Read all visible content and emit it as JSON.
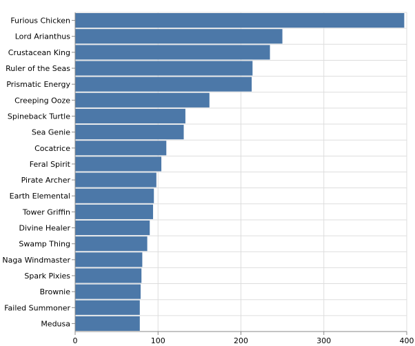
{
  "colors": {
    "bar": "#4c78a8",
    "grid": "#dddddd",
    "axis": "#888888"
  },
  "chart_data": {
    "type": "bar",
    "orientation": "horizontal",
    "title": "",
    "xlabel": "",
    "ylabel": "",
    "grid": true,
    "xlim": [
      0,
      400
    ],
    "xticks": [
      0,
      100,
      200,
      300,
      400
    ],
    "categories": [
      "Furious Chicken",
      "Lord Arianthus",
      "Crustacean King",
      "Ruler of the Seas",
      "Prismatic Energy",
      "Creeping Ooze",
      "Spineback Turtle",
      "Sea Genie",
      "Cocatrice",
      "Feral Spirit",
      "Pirate Archer",
      "Earth Elemental",
      "Tower Griffin",
      "Divine Healer",
      "Swamp Thing",
      "Naga Windmaster",
      "Spark Pixies",
      "Brownie",
      "Failed Summoner",
      "Medusa"
    ],
    "values": [
      397,
      250,
      235,
      214,
      213,
      162,
      133,
      131,
      110,
      104,
      98,
      95,
      94,
      90,
      87,
      81,
      80,
      79,
      78,
      78
    ]
  }
}
